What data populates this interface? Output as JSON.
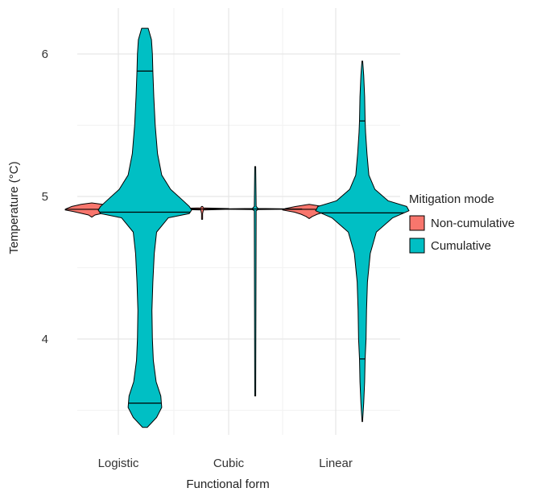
{
  "chart_data": {
    "type": "violin",
    "xlabel": "Functional form",
    "ylabel": "Temperature (°C)",
    "categories": [
      "Logistic",
      "Cubic",
      "Linear"
    ],
    "y_ticks": [
      4,
      5,
      6
    ],
    "y_tick_labels": [
      "4",
      "5",
      "6"
    ],
    "ylim": [
      3.38,
      6.24
    ],
    "grid": true,
    "legend": {
      "title": "Mitigation mode",
      "placement": "right",
      "entries": [
        {
          "name": "Non-cumulative",
          "color": "#F8766D"
        },
        {
          "name": "Cumulative",
          "color": "#00BFC4"
        }
      ]
    },
    "series": [
      {
        "name": "Non-cumulative",
        "color": "#F8766D",
        "violins": [
          {
            "category": "Logistic",
            "min": 4.855,
            "max": 4.955,
            "median": 4.91,
            "profile": [
              [
                4.855,
                0.0
              ],
              [
                4.87,
                0.12
              ],
              [
                4.88,
                0.35
              ],
              [
                4.895,
                0.7
              ],
              [
                4.905,
                1.0
              ],
              [
                4.91,
                1.0
              ],
              [
                4.915,
                0.95
              ],
              [
                4.93,
                0.75
              ],
              [
                4.945,
                0.4
              ],
              [
                4.955,
                0.0
              ]
            ]
          },
          {
            "category": "Cubic",
            "min": 4.84,
            "max": 4.93,
            "median": 4.912,
            "profile": [
              [
                4.84,
                0.02
              ],
              [
                4.88,
                0.02
              ],
              [
                4.905,
                0.05
              ],
              [
                4.91,
                1.0
              ],
              [
                4.915,
                1.0
              ],
              [
                4.92,
                0.05
              ],
              [
                4.93,
                0.02
              ]
            ]
          },
          {
            "category": "Linear",
            "min": 4.845,
            "max": 4.945,
            "median": 4.91,
            "profile": [
              [
                4.845,
                0.0
              ],
              [
                4.86,
                0.12
              ],
              [
                4.875,
                0.3
              ],
              [
                4.89,
                0.55
              ],
              [
                4.905,
                1.0
              ],
              [
                4.915,
                0.9
              ],
              [
                4.93,
                0.5
              ],
              [
                4.945,
                0.0
              ]
            ]
          }
        ]
      },
      {
        "name": "Cumulative",
        "color": "#00BFC4",
        "violins": [
          {
            "category": "Logistic",
            "min": 3.38,
            "max": 6.18,
            "median": 4.89,
            "q1": 3.55,
            "q3": 5.88,
            "profile": [
              [
                3.38,
                0.05
              ],
              [
                3.45,
                0.25
              ],
              [
                3.52,
                0.36
              ],
              [
                3.6,
                0.34
              ],
              [
                3.7,
                0.24
              ],
              [
                3.85,
                0.18
              ],
              [
                4.0,
                0.16
              ],
              [
                4.2,
                0.15
              ],
              [
                4.4,
                0.17
              ],
              [
                4.6,
                0.2
              ],
              [
                4.75,
                0.25
              ],
              [
                4.85,
                0.5
              ],
              [
                4.88,
                0.95
              ],
              [
                4.905,
                1.0
              ],
              [
                4.93,
                0.95
              ],
              [
                4.97,
                0.82
              ],
              [
                5.05,
                0.55
              ],
              [
                5.15,
                0.36
              ],
              [
                5.3,
                0.27
              ],
              [
                5.5,
                0.22
              ],
              [
                5.7,
                0.19
              ],
              [
                5.88,
                0.17
              ],
              [
                6.0,
                0.16
              ],
              [
                6.1,
                0.14
              ],
              [
                6.18,
                0.07
              ]
            ]
          },
          {
            "category": "Cubic",
            "min": 3.6,
            "max": 5.21,
            "median": 4.912,
            "profile": [
              [
                3.6,
                0.01
              ],
              [
                4.9,
                0.02
              ],
              [
                4.908,
                0.06
              ],
              [
                4.912,
                1.0
              ],
              [
                4.916,
                0.06
              ],
              [
                4.93,
                0.02
              ],
              [
                5.21,
                0.01
              ]
            ]
          },
          {
            "category": "Linear",
            "min": 3.42,
            "max": 5.95,
            "median": 4.885,
            "q1": 3.86,
            "q3": 5.53,
            "profile": [
              [
                3.42,
                0.005
              ],
              [
                3.55,
                0.03
              ],
              [
                3.7,
                0.05
              ],
              [
                3.86,
                0.06
              ],
              [
                4.0,
                0.08
              ],
              [
                4.2,
                0.09
              ],
              [
                4.4,
                0.11
              ],
              [
                4.6,
                0.17
              ],
              [
                4.75,
                0.3
              ],
              [
                4.85,
                0.65
              ],
              [
                4.9,
                1.0
              ],
              [
                4.93,
                0.95
              ],
              [
                4.97,
                0.55
              ],
              [
                5.05,
                0.27
              ],
              [
                5.15,
                0.14
              ],
              [
                5.3,
                0.1
              ],
              [
                5.45,
                0.07
              ],
              [
                5.53,
                0.06
              ],
              [
                5.7,
                0.05
              ],
              [
                5.85,
                0.03
              ],
              [
                5.95,
                0.008
              ]
            ]
          }
        ]
      }
    ]
  }
}
